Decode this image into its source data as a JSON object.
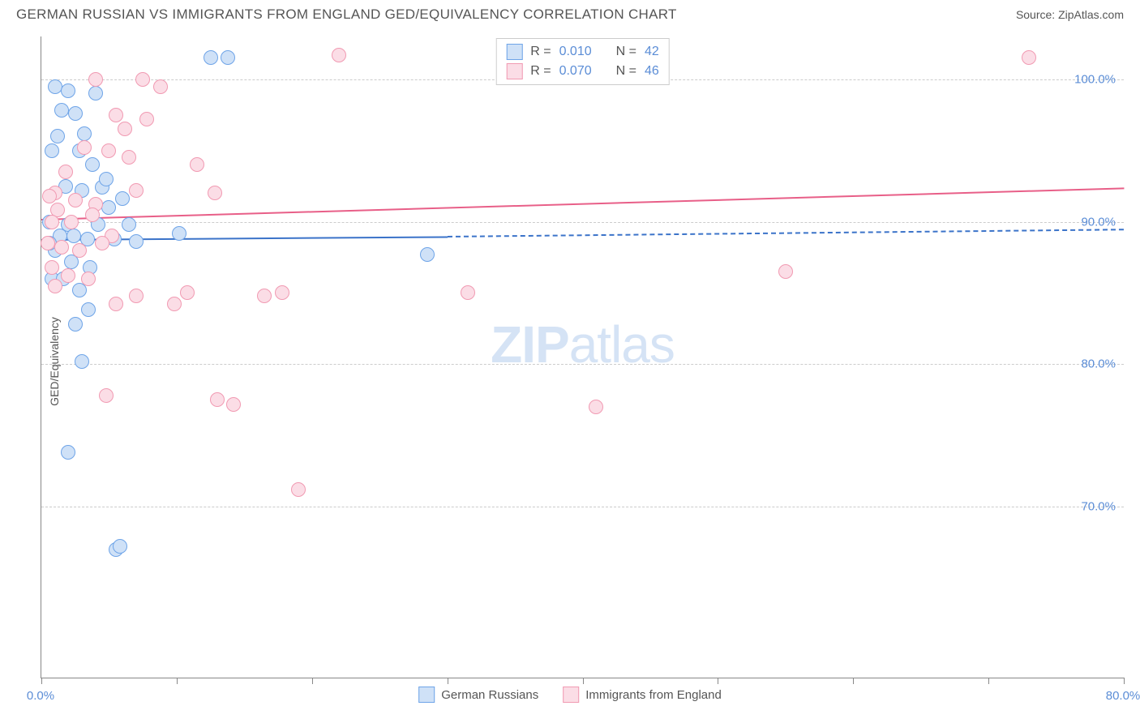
{
  "header": {
    "title": "GERMAN RUSSIAN VS IMMIGRANTS FROM ENGLAND GED/EQUIVALENCY CORRELATION CHART",
    "source": "Source: ZipAtlas.com"
  },
  "chart": {
    "type": "scatter",
    "ylabel": "GED/Equivalency",
    "xlim": [
      0,
      80
    ],
    "ylim": [
      58,
      103
    ],
    "xticks": [
      0,
      10,
      20,
      30,
      40,
      50,
      60,
      70,
      80
    ],
    "xlabels_shown": [
      {
        "v": 0,
        "t": "0.0%"
      },
      {
        "v": 80,
        "t": "80.0%"
      }
    ],
    "yticks": [
      {
        "v": 70,
        "t": "70.0%"
      },
      {
        "v": 80,
        "t": "80.0%"
      },
      {
        "v": 90,
        "t": "90.0%"
      },
      {
        "v": 100,
        "t": "100.0%"
      }
    ],
    "watermark": {
      "bold": "ZIP",
      "rest": "atlas"
    },
    "background_color": "#ffffff",
    "grid_color": "#cccccc",
    "axis_color": "#888888",
    "tick_label_color": "#5b8dd6",
    "point_radius": 9,
    "series": [
      {
        "name": "German Russians",
        "stroke": "#6ea4e8",
        "fill": "#cfe1f7",
        "reg_color": "#3b73c9",
        "reg": {
          "x0": 0,
          "y0": 88.8,
          "x1_solid": 30,
          "y1_solid": 89.0,
          "x1": 80,
          "y1": 89.5
        },
        "R": "0.010",
        "N": "42",
        "points": [
          [
            1.0,
            99.5
          ],
          [
            2.0,
            99.2
          ],
          [
            4.0,
            99.0
          ],
          [
            1.5,
            97.8
          ],
          [
            2.5,
            97.6
          ],
          [
            3.2,
            96.2
          ],
          [
            1.2,
            96.0
          ],
          [
            0.8,
            95.0
          ],
          [
            2.8,
            95.0
          ],
          [
            3.8,
            94.0
          ],
          [
            1.8,
            92.5
          ],
          [
            4.5,
            92.4
          ],
          [
            3.0,
            92.2
          ],
          [
            6.0,
            91.6
          ],
          [
            5.0,
            91.0
          ],
          [
            0.6,
            90.0
          ],
          [
            2.0,
            89.8
          ],
          [
            4.2,
            89.8
          ],
          [
            6.5,
            89.8
          ],
          [
            10.2,
            89.2
          ],
          [
            1.4,
            89.0
          ],
          [
            2.4,
            89.0
          ],
          [
            3.4,
            88.8
          ],
          [
            5.4,
            88.8
          ],
          [
            7.0,
            88.6
          ],
          [
            1.0,
            88.0
          ],
          [
            2.2,
            87.2
          ],
          [
            3.6,
            86.8
          ],
          [
            28.5,
            87.7
          ],
          [
            0.8,
            86.0
          ],
          [
            1.6,
            86.0
          ],
          [
            2.8,
            85.2
          ],
          [
            3.5,
            83.8
          ],
          [
            2.5,
            82.8
          ],
          [
            0.6,
            88.5
          ],
          [
            3.0,
            80.2
          ],
          [
            2.0,
            73.8
          ],
          [
            5.5,
            67.0
          ],
          [
            5.8,
            67.2
          ],
          [
            12.5,
            101.5
          ],
          [
            13.8,
            101.5
          ],
          [
            4.8,
            93.0
          ]
        ]
      },
      {
        "name": "Immigrants from England",
        "stroke": "#f19ab2",
        "fill": "#fbdde6",
        "reg_color": "#e85f88",
        "reg": {
          "x0": 0,
          "y0": 90.2,
          "x1_solid": 80,
          "y1_solid": 92.4,
          "x1": 80,
          "y1": 92.4
        },
        "R": "0.070",
        "N": "46",
        "points": [
          [
            4.0,
            100.0
          ],
          [
            7.5,
            100.0
          ],
          [
            8.8,
            99.5
          ],
          [
            22.0,
            101.7
          ],
          [
            35.0,
            101.5
          ],
          [
            73.0,
            101.5
          ],
          [
            5.5,
            97.5
          ],
          [
            7.8,
            97.2
          ],
          [
            3.2,
            95.2
          ],
          [
            5.0,
            95.0
          ],
          [
            6.5,
            94.5
          ],
          [
            11.5,
            94.0
          ],
          [
            1.0,
            92.0
          ],
          [
            2.5,
            91.5
          ],
          [
            4.0,
            91.2
          ],
          [
            7.0,
            92.2
          ],
          [
            12.8,
            92.0
          ],
          [
            1.2,
            90.8
          ],
          [
            3.8,
            90.5
          ],
          [
            0.8,
            90.0
          ],
          [
            2.2,
            90.0
          ],
          [
            5.2,
            89.0
          ],
          [
            0.5,
            88.5
          ],
          [
            1.5,
            88.2
          ],
          [
            0.8,
            86.8
          ],
          [
            2.0,
            86.2
          ],
          [
            3.5,
            86.0
          ],
          [
            1.0,
            85.5
          ],
          [
            5.5,
            84.2
          ],
          [
            7.0,
            84.8
          ],
          [
            9.8,
            84.2
          ],
          [
            10.8,
            85.0
          ],
          [
            16.5,
            84.8
          ],
          [
            17.8,
            85.0
          ],
          [
            31.5,
            85.0
          ],
          [
            55.0,
            86.5
          ],
          [
            4.8,
            77.8
          ],
          [
            13.0,
            77.5
          ],
          [
            14.2,
            77.2
          ],
          [
            19.0,
            71.2
          ],
          [
            0.6,
            91.8
          ],
          [
            1.8,
            93.5
          ],
          [
            4.5,
            88.5
          ],
          [
            6.2,
            96.5
          ],
          [
            2.8,
            88.0
          ],
          [
            41.0,
            77.0
          ]
        ]
      }
    ],
    "legend_top": [
      {
        "swatch": 0,
        "R_label": "R =",
        "R": "0.010",
        "N_label": "N =",
        "N": "42"
      },
      {
        "swatch": 1,
        "R_label": "R =",
        "R": "0.070",
        "N_label": "N =",
        "N": "46"
      }
    ],
    "legend_bottom": [
      {
        "swatch": 0,
        "label": "German Russians"
      },
      {
        "swatch": 1,
        "label": "Immigrants from England"
      }
    ]
  }
}
